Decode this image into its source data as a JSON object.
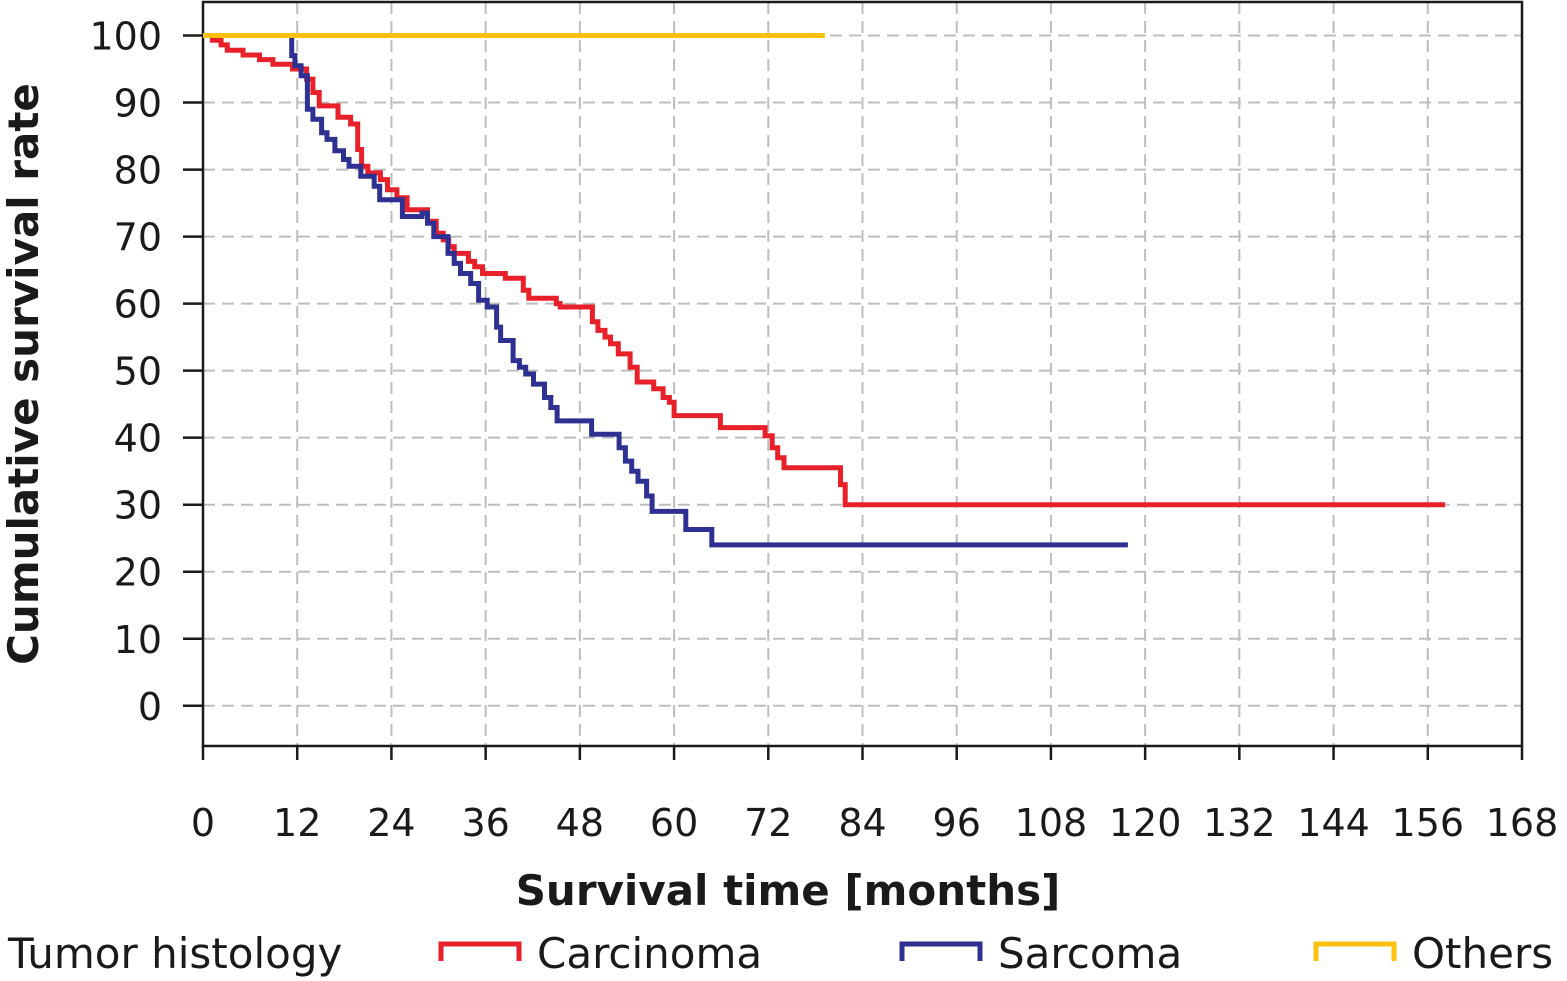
{
  "chart_data": {
    "type": "line",
    "subtype": "kaplan-meier-step",
    "title": "",
    "xlabel": "Survival time [months]",
    "ylabel": "Cumulative survival rate",
    "xlim": [
      0,
      168
    ],
    "ylim": [
      -6,
      105
    ],
    "xticks": [
      0,
      12,
      24,
      36,
      48,
      60,
      72,
      84,
      96,
      108,
      120,
      132,
      144,
      156,
      168
    ],
    "yticks": [
      0,
      10,
      20,
      30,
      40,
      50,
      60,
      70,
      80,
      90,
      100
    ],
    "grid": true,
    "legend": {
      "title": "Tumor histology",
      "position": "bottom"
    },
    "series": [
      {
        "name": "Carcinoma",
        "color": "#e8202a",
        "points": [
          [
            0,
            100
          ],
          [
            1.2,
            99.3
          ],
          [
            2.3,
            98.6
          ],
          [
            3.1,
            97.8
          ],
          [
            5.1,
            97.1
          ],
          [
            7.2,
            96.4
          ],
          [
            8.9,
            95.7
          ],
          [
            11.4,
            95.0
          ],
          [
            13.2,
            93.5
          ],
          [
            14.0,
            91.5
          ],
          [
            14.8,
            89.5
          ],
          [
            17.2,
            87.8
          ],
          [
            18.8,
            86.8
          ],
          [
            19.7,
            83.0
          ],
          [
            20.2,
            80.5
          ],
          [
            21.0,
            79.5
          ],
          [
            22.6,
            78.5
          ],
          [
            23.5,
            77.0
          ],
          [
            24.7,
            75.8
          ],
          [
            26.0,
            74.0
          ],
          [
            28.6,
            72.3
          ],
          [
            29.7,
            70.5
          ],
          [
            30.6,
            69.5
          ],
          [
            31.3,
            68.5
          ],
          [
            32.0,
            67.5
          ],
          [
            33.8,
            66.3
          ],
          [
            34.6,
            65.5
          ],
          [
            35.6,
            64.5
          ],
          [
            38.5,
            63.8
          ],
          [
            40.8,
            62.0
          ],
          [
            41.5,
            60.8
          ],
          [
            45.0,
            60.0
          ],
          [
            45.5,
            59.5
          ],
          [
            49.6,
            57.3
          ],
          [
            50.3,
            56.0
          ],
          [
            51.2,
            55.0
          ],
          [
            51.9,
            54.0
          ],
          [
            52.9,
            52.5
          ],
          [
            54.4,
            50.5
          ],
          [
            55.3,
            48.3
          ],
          [
            57.4,
            47.3
          ],
          [
            58.6,
            46.0
          ],
          [
            59.4,
            45.3
          ],
          [
            60.0,
            43.3
          ],
          [
            65.9,
            41.5
          ],
          [
            71.6,
            40.3
          ],
          [
            72.5,
            38.5
          ],
          [
            73.2,
            37.0
          ],
          [
            74.0,
            35.5
          ],
          [
            81.2,
            33.0
          ],
          [
            81.8,
            30.0
          ],
          [
            158.2,
            30.0
          ]
        ]
      },
      {
        "name": "Sarcoma",
        "color": "#2e3192",
        "points": [
          [
            0,
            100
          ],
          [
            11.0,
            100
          ],
          [
            11.3,
            97.0
          ],
          [
            11.7,
            95.5
          ],
          [
            12.5,
            94.0
          ],
          [
            13.3,
            89.0
          ],
          [
            14.0,
            87.5
          ],
          [
            15.1,
            85.5
          ],
          [
            15.8,
            84.5
          ],
          [
            16.8,
            82.8
          ],
          [
            17.9,
            81.5
          ],
          [
            18.6,
            80.5
          ],
          [
            20.1,
            79.0
          ],
          [
            21.8,
            77.5
          ],
          [
            22.5,
            75.5
          ],
          [
            25.4,
            73.0
          ],
          [
            27.9,
            73.5
          ],
          [
            28.6,
            72.0
          ],
          [
            29.4,
            70.0
          ],
          [
            31.2,
            67.5
          ],
          [
            32.0,
            66.0
          ],
          [
            32.8,
            64.5
          ],
          [
            34.1,
            63.0
          ],
          [
            35.1,
            60.5
          ],
          [
            36.2,
            59.5
          ],
          [
            37.4,
            56.5
          ],
          [
            37.9,
            54.5
          ],
          [
            39.5,
            51.5
          ],
          [
            40.3,
            50.5
          ],
          [
            41.1,
            49.5
          ],
          [
            42.1,
            48.0
          ],
          [
            43.5,
            46.0
          ],
          [
            44.3,
            44.5
          ],
          [
            45.1,
            42.5
          ],
          [
            49.5,
            40.5
          ],
          [
            53.0,
            38.5
          ],
          [
            53.8,
            36.5
          ],
          [
            54.6,
            35.0
          ],
          [
            55.4,
            33.5
          ],
          [
            56.5,
            31.3
          ],
          [
            57.2,
            29.0
          ],
          [
            61.5,
            26.3
          ],
          [
            64.8,
            24.0
          ],
          [
            117.8,
            24.0
          ]
        ]
      },
      {
        "name": "Others",
        "color": "#fdc010",
        "points": [
          [
            0,
            100
          ],
          [
            79.2,
            100
          ]
        ]
      }
    ]
  }
}
